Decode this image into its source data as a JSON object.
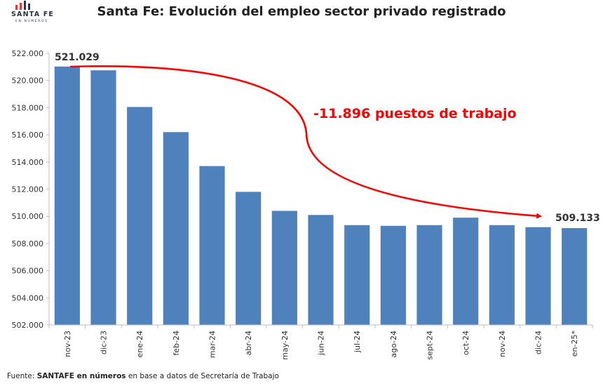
{
  "logo": {
    "main": "SANTA FE",
    "sub": "EN NÚMEROS"
  },
  "title": "Santa Fe: Evolución del empleo sector privado registrado",
  "chart_data": {
    "type": "bar",
    "categories": [
      "nov-23",
      "dic-23",
      "ene-24",
      "feb-24",
      "mar-24",
      "abr-24",
      "may-24",
      "jun-24",
      "jul-24",
      "ago-24",
      "sept-24",
      "oct-24",
      "nov-24",
      "dic-24",
      "en-25*"
    ],
    "series": [
      {
        "values": [
          521029,
          520750,
          518050,
          516200,
          513700,
          511800,
          510400,
          510100,
          509350,
          509300,
          509350,
          509900,
          509350,
          509200,
          509133
        ],
        "color": "#4f81bd"
      }
    ],
    "ylim": [
      502000,
      522000
    ],
    "yticks": [
      "502.000",
      "504.000",
      "506.000",
      "508.000",
      "510.000",
      "512.000",
      "514.000",
      "516.000",
      "518.000",
      "520.000",
      "522.000"
    ],
    "grid": false,
    "data_labels": {
      "first": "521.029",
      "last": "509.133"
    },
    "annotation": {
      "text": "-11.896 puestos de trabajo",
      "color": "#ff0000"
    }
  },
  "footer": {
    "prefix": "Fuente: ",
    "source": "SANTAFE en números",
    "suffix": " en base a datos de Secretaría de Trabajo"
  }
}
